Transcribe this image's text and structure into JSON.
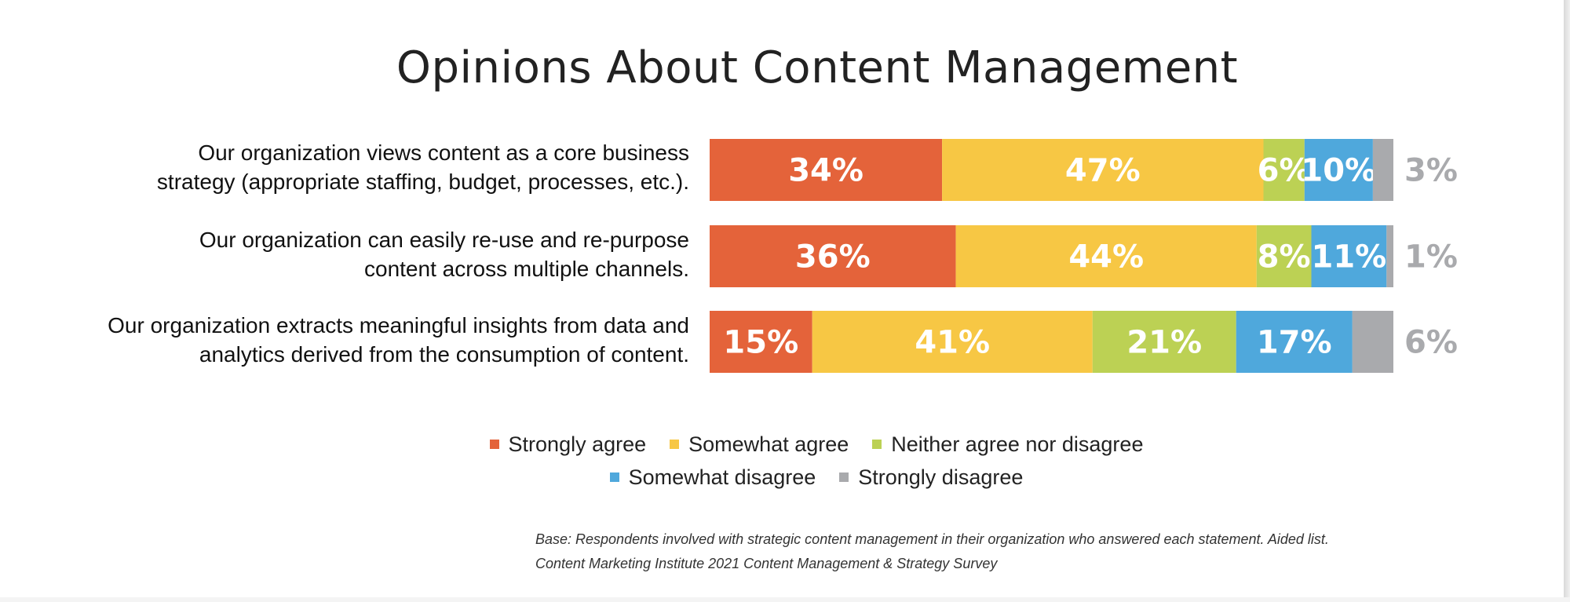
{
  "chart_data": {
    "type": "bar",
    "orientation": "horizontal",
    "stacked": true,
    "title": "Opinions About Content Management",
    "categories": [
      [
        "Our organization views content as a core business",
        "strategy (appropriate staffing, budget, processes, etc.)."
      ],
      [
        "Our organization can easily re-use and re-purpose",
        "content across multiple channels."
      ],
      [
        "Our organization extracts meaningful insights from data and",
        "analytics derived from the consumption of content."
      ]
    ],
    "series": [
      {
        "name": "Strongly agree",
        "color": "#E4633A",
        "values": [
          34,
          36,
          15
        ],
        "labels": [
          "34%",
          "36%",
          "15%"
        ]
      },
      {
        "name": "Somewhat agree",
        "color": "#F7C744",
        "values": [
          47,
          44,
          41
        ],
        "labels": [
          "47%",
          "44%",
          "41%"
        ]
      },
      {
        "name": "Neither agree nor disagree",
        "color": "#BCD154",
        "values": [
          6,
          8,
          21
        ],
        "labels": [
          "6%",
          "8%",
          "21%"
        ]
      },
      {
        "name": "Somewhat disagree",
        "color": "#4FA8DC",
        "values": [
          10,
          11,
          17
        ],
        "labels": [
          "10%",
          "11%",
          "17%"
        ]
      },
      {
        "name": "Strongly disagree",
        "color": "#A9AAAD",
        "values": [
          3,
          1,
          6
        ],
        "labels": [
          "3%",
          "1%",
          "6%"
        ]
      }
    ],
    "xlim": [
      0,
      100
    ],
    "grid": false,
    "legend_position": "bottom"
  },
  "footnote": [
    "Base: Respondents involved with strategic content management in their organization who answered each statement. Aided list.",
    "Content Marketing Institute 2021 Content Management & Strategy Survey"
  ]
}
